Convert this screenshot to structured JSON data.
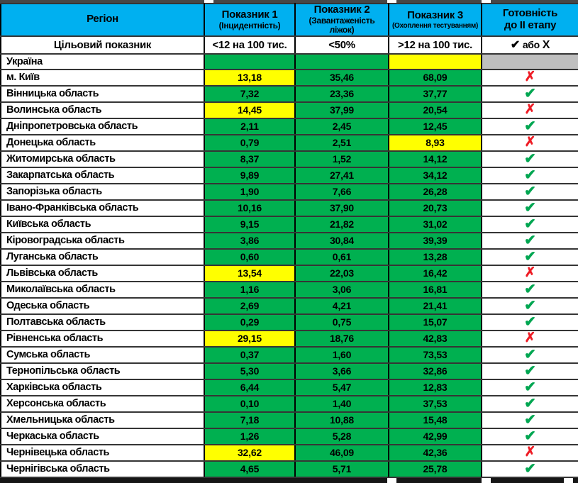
{
  "chart_data": {
    "type": "table",
    "columns": [
      {
        "label": "Регіон",
        "sublabel": ""
      },
      {
        "label": "Показник 1",
        "sublabel": "(Інцидентність)"
      },
      {
        "label": "Показник 2",
        "sublabel": "(Завантаженість ліжок)"
      },
      {
        "label": "Показник 3",
        "sublabel": "(Охоплення тестуванням)"
      },
      {
        "label": "Готовність",
        "sublabel": "до II етапу"
      }
    ],
    "target_row": {
      "label": "Цільовий показник",
      "indicator1": "<12 на 100 тис.",
      "indicator2": "<50%",
      "indicator3": ">12 на 100 тис.",
      "readiness_check": "✔",
      "readiness_or": "або",
      "readiness_cross": "Х"
    },
    "ukraine_row": {
      "region": "Україна",
      "cell_colors": [
        "green",
        "green",
        "yellow",
        "gray"
      ]
    },
    "rows": [
      {
        "region": "м. Київ",
        "values": [
          "13,18",
          "35,46",
          "68,09"
        ],
        "value_colors": [
          "yellow",
          "green",
          "green"
        ],
        "status": "cross"
      },
      {
        "region": "Вінницька область",
        "values": [
          "7,32",
          "23,36",
          "37,77"
        ],
        "value_colors": [
          "green",
          "green",
          "green"
        ],
        "status": "check"
      },
      {
        "region": "Волинська область",
        "values": [
          "14,45",
          "37,99",
          "20,54"
        ],
        "value_colors": [
          "yellow",
          "green",
          "green"
        ],
        "status": "cross"
      },
      {
        "region": "Дніпропетровська область",
        "values": [
          "2,11",
          "2,45",
          "12,45"
        ],
        "value_colors": [
          "green",
          "green",
          "green"
        ],
        "status": "check"
      },
      {
        "region": "Донецька область",
        "values": [
          "0,79",
          "2,51",
          "8,93"
        ],
        "value_colors": [
          "green",
          "green",
          "yellow"
        ],
        "status": "cross"
      },
      {
        "region": "Житомирська область",
        "values": [
          "8,37",
          "1,52",
          "14,12"
        ],
        "value_colors": [
          "green",
          "green",
          "green"
        ],
        "status": "check"
      },
      {
        "region": "Закарпатська область",
        "values": [
          "9,89",
          "27,41",
          "34,12"
        ],
        "value_colors": [
          "green",
          "green",
          "green"
        ],
        "status": "check"
      },
      {
        "region": "Запорізька область",
        "values": [
          "1,90",
          "7,66",
          "26,28"
        ],
        "value_colors": [
          "green",
          "green",
          "green"
        ],
        "status": "check"
      },
      {
        "region": "Івано-Франківська область",
        "values": [
          "10,16",
          "37,90",
          "20,73"
        ],
        "value_colors": [
          "green",
          "green",
          "green"
        ],
        "status": "check"
      },
      {
        "region": "Київська область",
        "values": [
          "9,15",
          "21,82",
          "31,02"
        ],
        "value_colors": [
          "green",
          "green",
          "green"
        ],
        "status": "check"
      },
      {
        "region": "Кіровоградська область",
        "values": [
          "3,86",
          "30,84",
          "39,39"
        ],
        "value_colors": [
          "green",
          "green",
          "green"
        ],
        "status": "check"
      },
      {
        "region": "Луганська область",
        "values": [
          "0,60",
          "0,61",
          "13,28"
        ],
        "value_colors": [
          "green",
          "green",
          "green"
        ],
        "status": "check"
      },
      {
        "region": "Львівська область",
        "values": [
          "13,54",
          "22,03",
          "16,42"
        ],
        "value_colors": [
          "yellow",
          "green",
          "green"
        ],
        "status": "cross"
      },
      {
        "region": "Миколаївська область",
        "values": [
          "1,16",
          "3,06",
          "16,81"
        ],
        "value_colors": [
          "green",
          "green",
          "green"
        ],
        "status": "check"
      },
      {
        "region": "Одеська область",
        "values": [
          "2,69",
          "4,21",
          "21,41"
        ],
        "value_colors": [
          "green",
          "green",
          "green"
        ],
        "status": "check"
      },
      {
        "region": "Полтавська область",
        "values": [
          "0,29",
          "0,75",
          "15,07"
        ],
        "value_colors": [
          "green",
          "green",
          "green"
        ],
        "status": "check"
      },
      {
        "region": "Рівненська область",
        "values": [
          "29,15",
          "18,76",
          "42,83"
        ],
        "value_colors": [
          "yellow",
          "green",
          "green"
        ],
        "status": "cross"
      },
      {
        "region": "Сумська область",
        "values": [
          "0,37",
          "1,60",
          "73,53"
        ],
        "value_colors": [
          "green",
          "green",
          "green"
        ],
        "status": "check"
      },
      {
        "region": "Тернопільська область",
        "values": [
          "5,30",
          "3,66",
          "32,86"
        ],
        "value_colors": [
          "green",
          "green",
          "green"
        ],
        "status": "check"
      },
      {
        "region": "Харківська область",
        "values": [
          "6,44",
          "5,47",
          "12,83"
        ],
        "value_colors": [
          "green",
          "green",
          "green"
        ],
        "status": "check"
      },
      {
        "region": "Херсонська область",
        "values": [
          "0,10",
          "1,40",
          "37,53"
        ],
        "value_colors": [
          "green",
          "green",
          "green"
        ],
        "status": "check"
      },
      {
        "region": "Хмельницька область",
        "values": [
          "7,18",
          "10,88",
          "15,48"
        ],
        "value_colors": [
          "green",
          "green",
          "green"
        ],
        "status": "check"
      },
      {
        "region": "Черкаська область",
        "values": [
          "1,26",
          "5,28",
          "42,99"
        ],
        "value_colors": [
          "green",
          "green",
          "green"
        ],
        "status": "check"
      },
      {
        "region": "Чернівецька область",
        "values": [
          "32,62",
          "46,09",
          "42,36"
        ],
        "value_colors": [
          "yellow",
          "green",
          "green"
        ],
        "status": "cross"
      },
      {
        "region": "Чернігівська область",
        "values": [
          "4,65",
          "5,71",
          "25,78"
        ],
        "value_colors": [
          "green",
          "green",
          "green"
        ],
        "status": "check"
      }
    ]
  },
  "icons": {
    "check": "✔",
    "cross": "✗"
  },
  "colors": {
    "header_bg": "#00B0F0",
    "cell_green": "#00B050",
    "cell_yellow": "#FFFF00",
    "cell_gray": "#BFBFBF",
    "check_green": "#00A651",
    "cross_red": "#EE1C25"
  }
}
